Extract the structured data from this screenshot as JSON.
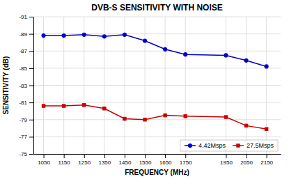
{
  "chart_data": {
    "type": "line",
    "title": "DVB-S SENSITIVITY WITH NOISE",
    "xlabel": "FREQUENCY (MHz)",
    "ylabel": "SENSITIVITY (dB)",
    "x": [
      1050,
      1150,
      1250,
      1350,
      1450,
      1550,
      1650,
      1750,
      1950,
      2050,
      2150
    ],
    "series": [
      {
        "name": "4.42Msps",
        "color": "#0000CC",
        "marker": "circle",
        "values": [
          -88.8,
          -88.8,
          -88.9,
          -88.7,
          -88.9,
          -88.2,
          -87.2,
          -86.6,
          -86.5,
          -85.9,
          -85.2
        ]
      },
      {
        "name": "27.5Msps",
        "color": "#CC0000",
        "marker": "square",
        "values": [
          -80.6,
          -80.6,
          -80.7,
          -80.3,
          -79.1,
          -79.0,
          -79.5,
          -79.4,
          -79.3,
          -78.3,
          -77.9
        ]
      }
    ],
    "xlim": [
      1000,
      2220
    ],
    "ylim": [
      -75,
      -91
    ],
    "xticks": [
      1050,
      1150,
      1250,
      1350,
      1450,
      1550,
      1650,
      1750,
      1950,
      2050,
      2150
    ],
    "yticks": [
      -75,
      -77,
      -79,
      -81,
      -83,
      -85,
      -87,
      -89,
      -91
    ],
    "grid": true,
    "legend": "lower right"
  }
}
